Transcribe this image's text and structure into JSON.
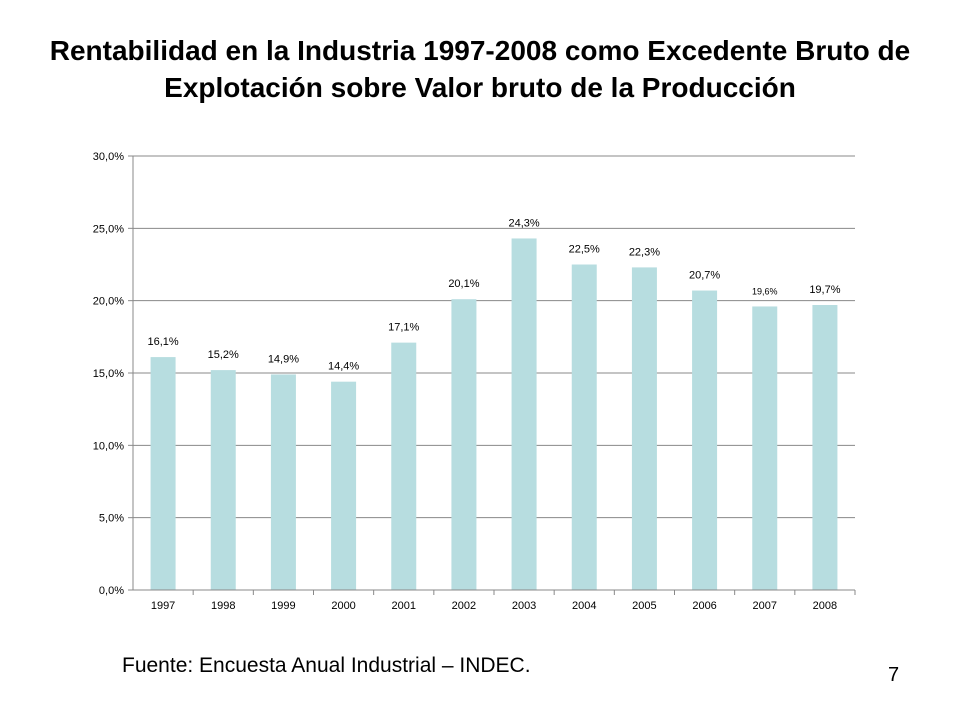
{
  "slide": {
    "title": "Rentabilidad en la Industria 1997-2008 como Excedente Bruto de Explotación sobre Valor bruto de la Producción",
    "source": "Fuente: Encuesta Anual Industrial – INDEC.",
    "page_number": "7"
  },
  "chart_data": {
    "type": "bar",
    "title": "Rentabilidad en la Industria 1997-2008 como Excedente Bruto de Explotación sobre Valor bruto de la Producción",
    "xlabel": "",
    "ylabel": "",
    "categories": [
      "1997",
      "1998",
      "1999",
      "2000",
      "2001",
      "2002",
      "2003",
      "2004",
      "2005",
      "2006",
      "2007",
      "2008"
    ],
    "values": [
      16.1,
      15.2,
      14.9,
      14.4,
      17.1,
      20.1,
      24.3,
      22.5,
      22.3,
      20.7,
      19.6,
      19.7
    ],
    "data_labels": [
      "16,1%",
      "15,2%",
      "14,9%",
      "14,4%",
      "17,1%",
      "20,1%",
      "24,3%",
      "22,5%",
      "22,3%",
      "20,7%",
      "19,6%",
      "19,7%"
    ],
    "ylim": [
      0,
      30
    ],
    "yticks": [
      0,
      5,
      10,
      15,
      20,
      25,
      30
    ],
    "ytick_labels": [
      "0,0%",
      "5,0%",
      "10,0%",
      "15,0%",
      "20,0%",
      "25,0%",
      "30,0%"
    ],
    "grid": true,
    "legend": "none",
    "bar_color": "#b7dde0",
    "grid_color": "#888888"
  }
}
